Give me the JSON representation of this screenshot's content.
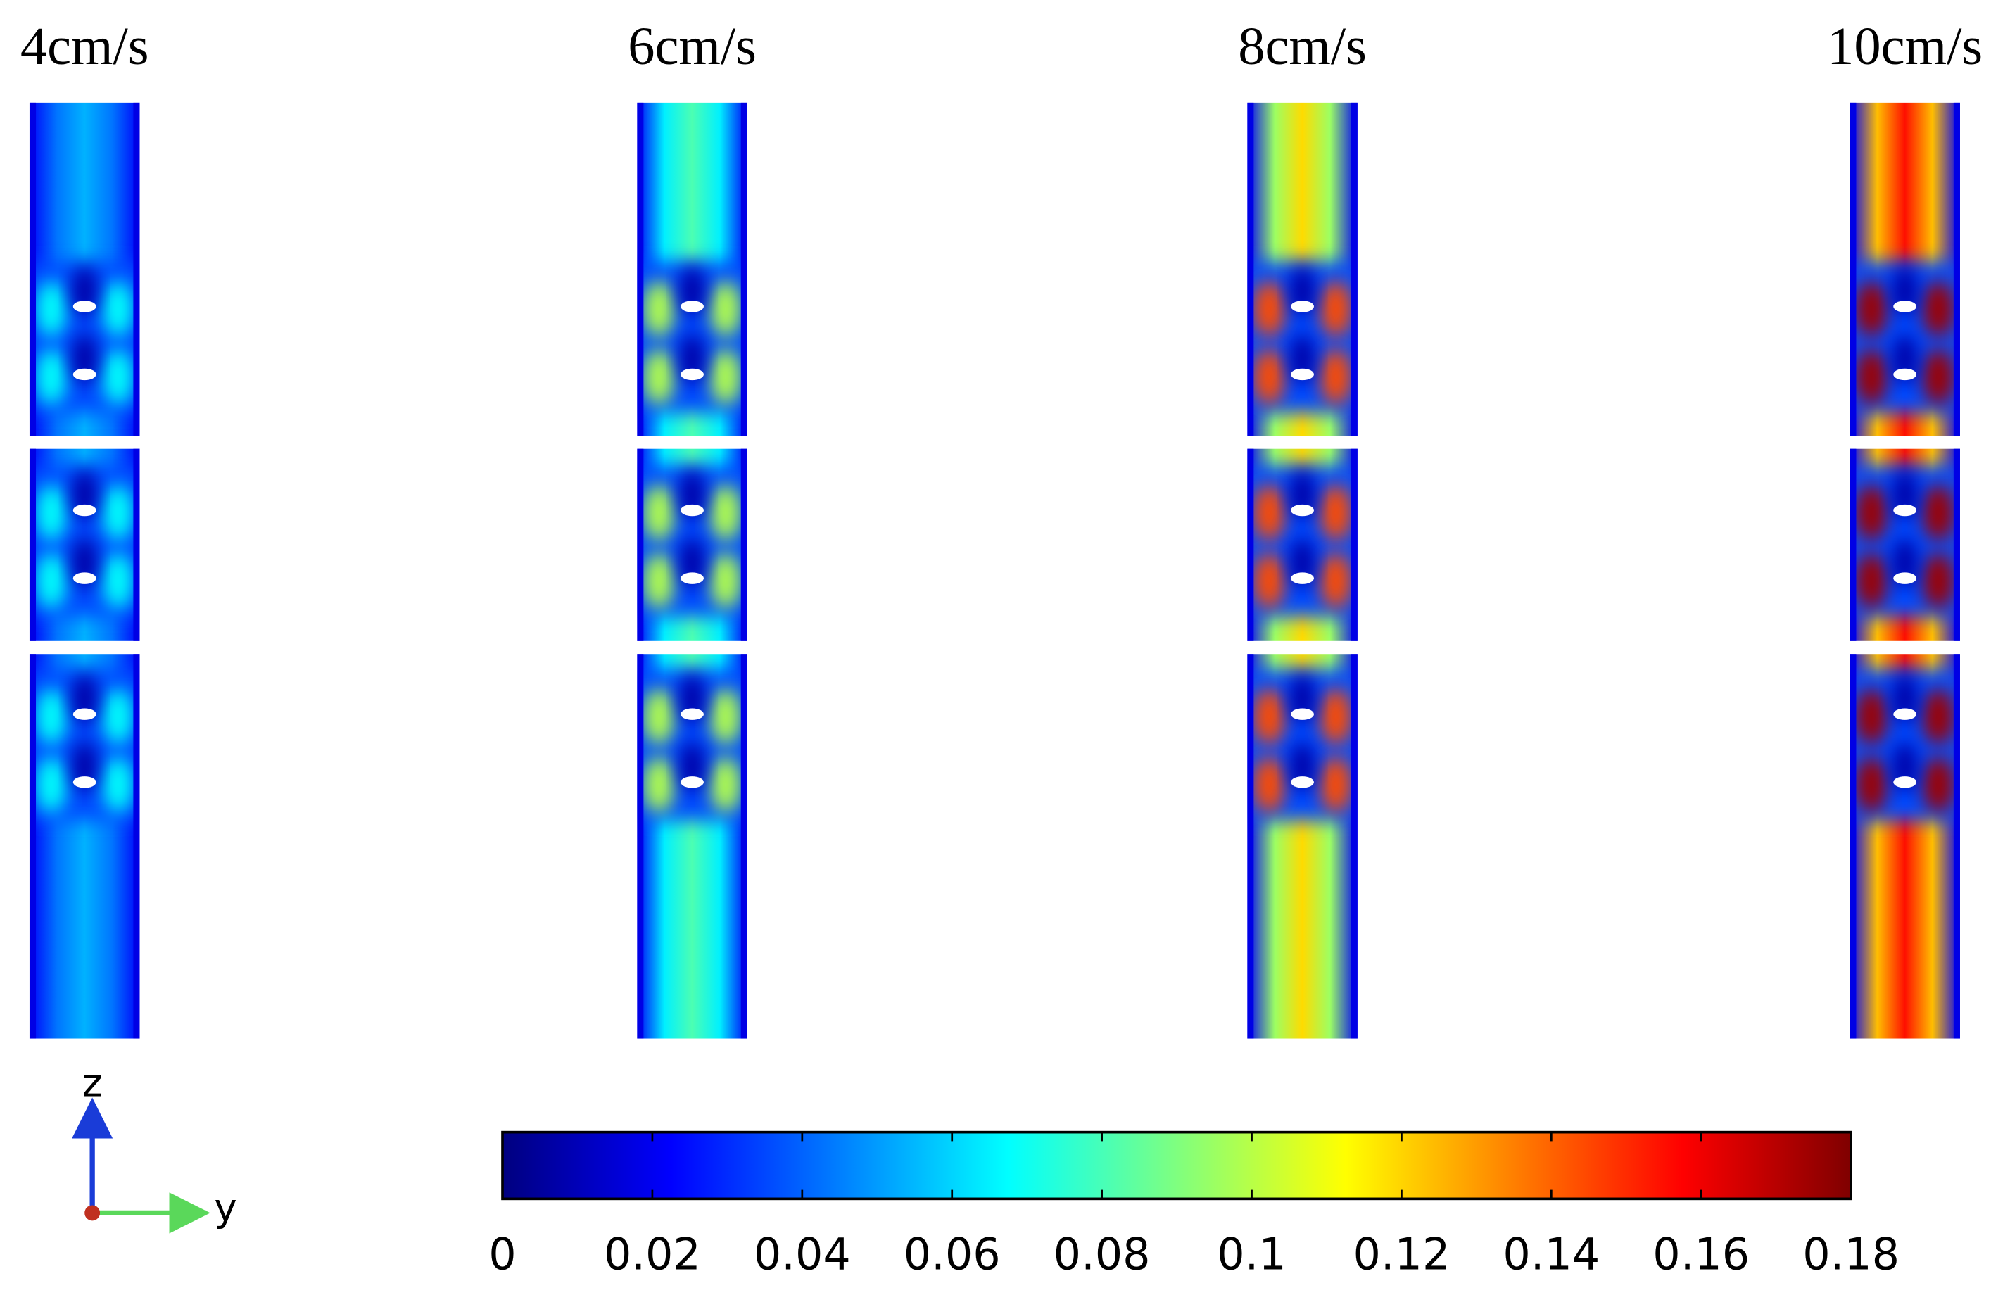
{
  "chart_data": {
    "type": "field",
    "panels": [
      {
        "title": "4cm/s"
      },
      {
        "title": "6cm/s"
      },
      {
        "title": "8cm/s"
      },
      {
        "title": "10cm/s"
      }
    ],
    "colorbar": {
      "lim": [
        0,
        0.18
      ],
      "ticks": [
        0,
        0.02,
        0.04,
        0.06,
        0.08,
        0.1,
        0.12,
        0.14,
        0.16,
        0.18
      ],
      "colormap": [
        "#00007f",
        "#0000ff",
        "#007fff",
        "#00ffff",
        "#7fff7f",
        "#ffff00",
        "#ff7f00",
        "#ff0000",
        "#7f0000"
      ]
    },
    "axes": {
      "z": "z",
      "y": "y"
    }
  }
}
